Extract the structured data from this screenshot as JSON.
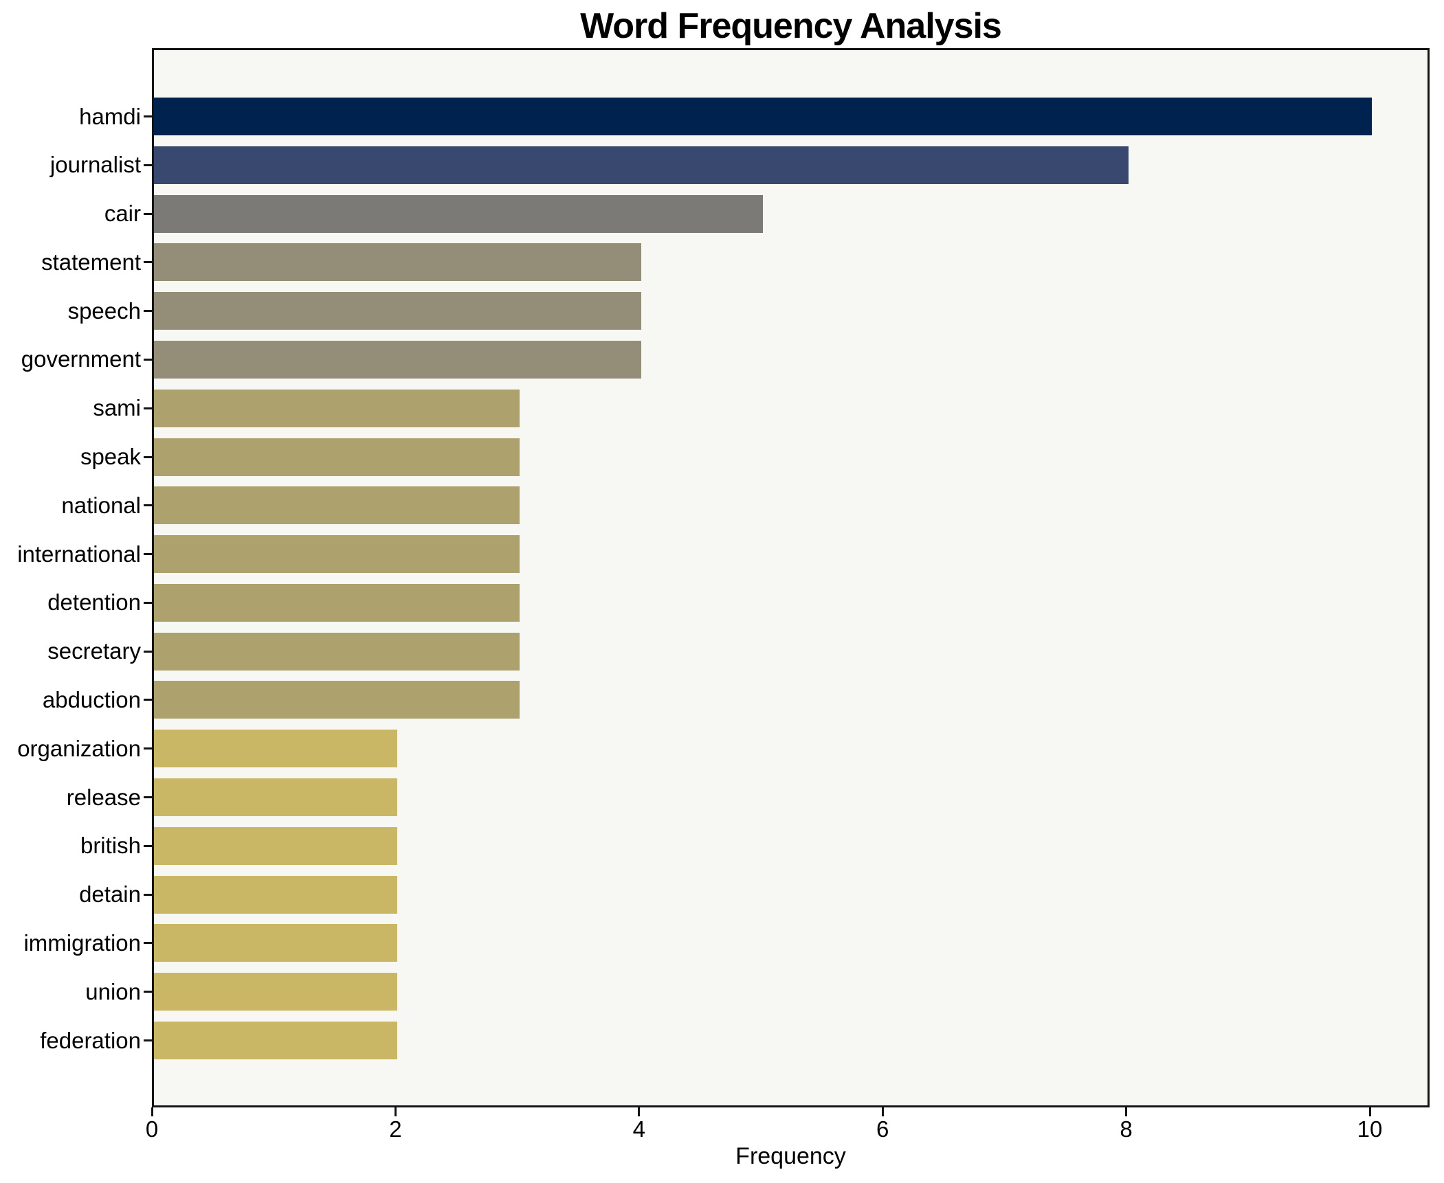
{
  "chart_data": {
    "type": "bar",
    "orientation": "horizontal",
    "title": "Word Frequency Analysis",
    "xlabel": "Frequency",
    "ylabel": "",
    "categories": [
      "hamdi",
      "journalist",
      "cair",
      "statement",
      "speech",
      "government",
      "sami",
      "speak",
      "national",
      "international",
      "detention",
      "secretary",
      "abduction",
      "organization",
      "release",
      "british",
      "detain",
      "immigration",
      "union",
      "federation"
    ],
    "values": [
      10,
      8,
      5,
      4,
      4,
      4,
      3,
      3,
      3,
      3,
      3,
      3,
      3,
      2,
      2,
      2,
      2,
      2,
      2,
      2
    ],
    "bar_colors": [
      "#00224e",
      "#38486e",
      "#7b7a76",
      "#948e78",
      "#948e78",
      "#948e78",
      "#ada16e",
      "#ada16e",
      "#ada16e",
      "#ada16e",
      "#ada16e",
      "#ada16e",
      "#ada16e",
      "#c9b765",
      "#c9b765",
      "#c9b765",
      "#c9b765",
      "#c9b765",
      "#c9b765",
      "#c9b765"
    ],
    "xlim": [
      0,
      10.5
    ],
    "xticks": [
      0,
      2,
      4,
      6,
      8,
      10
    ],
    "grid": false,
    "legend": false,
    "figure_bg": "#ffffff",
    "plot_bg": "#f7f7f4",
    "spine_color": "#141414",
    "text_color": "#000000"
  }
}
